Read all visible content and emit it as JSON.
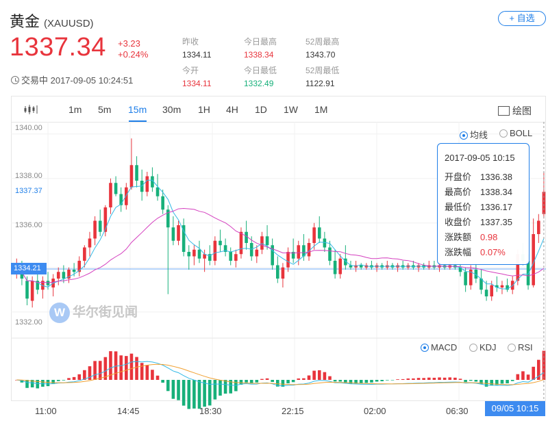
{
  "header": {
    "name": "黄金",
    "code": "(XAUUSD)",
    "add_label": "+ 自选",
    "price": "1337.34",
    "change": "+3.23",
    "change_pct": "+0.24%",
    "status": "交易中 2017-09-05 10:24:51"
  },
  "stats": [
    {
      "label": "昨收",
      "value": "1334.11",
      "color": "normal"
    },
    {
      "label": "今日最高",
      "value": "1338.34",
      "color": "red"
    },
    {
      "label": "52周最高",
      "value": "1343.70",
      "color": "normal"
    },
    {
      "label": "今开",
      "value": "1334.11",
      "color": "red"
    },
    {
      "label": "今日最低",
      "value": "1332.49",
      "color": "green"
    },
    {
      "label": "52周最低",
      "value": "1122.91",
      "color": "normal"
    }
  ],
  "toolbar": {
    "timeframes": [
      "1m",
      "5m",
      "15m",
      "30m",
      "1H",
      "4H",
      "1D",
      "1W",
      "1M"
    ],
    "active": "15m",
    "draw_label": "绘图"
  },
  "indicators_main": [
    "均线",
    "BOLL"
  ],
  "indicators_sub": [
    "MACD",
    "KDJ",
    "RSI"
  ],
  "y_axis": {
    "labels": [
      "1340.00",
      "1338.00",
      "1337.37",
      "1336.00",
      "1334.21",
      "1332.00"
    ]
  },
  "x_axis": {
    "labels": [
      "11:00",
      "14:45",
      "18:30",
      "22:15",
      "02:00",
      "06:30"
    ],
    "current": "09/05 10:15"
  },
  "tooltip": {
    "date": "2017-09-05 10:15",
    "rows": [
      {
        "k": "开盘价",
        "v": "1336.38",
        "color": "normal"
      },
      {
        "k": "最高价",
        "v": "1338.34",
        "color": "normal"
      },
      {
        "k": "最低价",
        "v": "1336.17",
        "color": "normal"
      },
      {
        "k": "收盘价",
        "v": "1337.35",
        "color": "normal"
      },
      {
        "k": "涨跌额",
        "v": "0.98",
        "color": "red"
      },
      {
        "k": "涨跌幅",
        "v": "0.07%",
        "color": "red"
      }
    ]
  },
  "watermark": "华尔街见闻",
  "colors": {
    "up": "#e8343c",
    "down": "#17b07a",
    "accent": "#1e7ee8"
  },
  "chart_data": {
    "type": "candlestick",
    "ylim": [
      1331.5,
      1340.3
    ],
    "candles": [
      [
        1333.9,
        1334.4,
        1333.5,
        1334.1
      ],
      [
        1334.1,
        1334.3,
        1333.2,
        1333.5
      ],
      [
        1333.4,
        1333.6,
        1332.3,
        1332.6
      ],
      [
        1332.5,
        1333.6,
        1332.2,
        1333.4
      ],
      [
        1333.4,
        1334.0,
        1332.8,
        1333.0
      ],
      [
        1333.0,
        1333.6,
        1332.6,
        1333.4
      ],
      [
        1333.4,
        1333.8,
        1333.0,
        1333.2
      ],
      [
        1333.1,
        1333.7,
        1332.7,
        1333.5
      ],
      [
        1333.5,
        1334.0,
        1333.2,
        1333.8
      ],
      [
        1333.8,
        1334.1,
        1333.3,
        1333.5
      ],
      [
        1333.5,
        1334.0,
        1333.3,
        1333.9
      ],
      [
        1333.9,
        1334.2,
        1333.6,
        1333.8
      ],
      [
        1333.8,
        1334.5,
        1333.6,
        1334.3
      ],
      [
        1334.3,
        1335.0,
        1334.0,
        1334.9
      ],
      [
        1334.9,
        1335.6,
        1334.5,
        1335.3
      ],
      [
        1335.3,
        1336.3,
        1335.0,
        1336.1
      ],
      [
        1336.1,
        1336.6,
        1335.4,
        1335.6
      ],
      [
        1335.6,
        1336.8,
        1335.4,
        1336.7
      ],
      [
        1336.7,
        1338.0,
        1336.4,
        1337.8
      ],
      [
        1337.8,
        1338.1,
        1337.2,
        1337.3
      ],
      [
        1337.3,
        1337.6,
        1336.5,
        1336.8
      ],
      [
        1336.8,
        1337.8,
        1336.6,
        1337.6
      ],
      [
        1337.6,
        1339.8,
        1337.5,
        1338.6
      ],
      [
        1338.6,
        1339.0,
        1337.6,
        1337.9
      ],
      [
        1337.9,
        1338.4,
        1337.0,
        1337.4
      ],
      [
        1337.4,
        1338.3,
        1337.2,
        1338.1
      ],
      [
        1338.1,
        1338.5,
        1337.4,
        1337.6
      ],
      [
        1337.6,
        1338.2,
        1337.0,
        1337.2
      ],
      [
        1337.2,
        1337.5,
        1336.4,
        1336.6
      ],
      [
        1336.6,
        1336.8,
        1332.8,
        1335.8
      ],
      [
        1335.8,
        1336.3,
        1335.0,
        1335.2
      ],
      [
        1335.2,
        1336.1,
        1335.0,
        1335.9
      ],
      [
        1335.9,
        1336.2,
        1334.5,
        1334.7
      ],
      [
        1334.7,
        1335.0,
        1333.9,
        1334.5
      ],
      [
        1334.5,
        1335.0,
        1334.1,
        1334.8
      ],
      [
        1334.8,
        1335.2,
        1334.2,
        1334.4
      ],
      [
        1334.4,
        1334.8,
        1333.8,
        1334.6
      ],
      [
        1334.6,
        1335.0,
        1334.1,
        1334.3
      ],
      [
        1334.3,
        1335.4,
        1334.1,
        1335.2
      ],
      [
        1335.2,
        1335.7,
        1334.7,
        1335.0
      ],
      [
        1335.0,
        1335.3,
        1334.5,
        1334.7
      ],
      [
        1334.7,
        1334.9,
        1334.1,
        1334.3
      ],
      [
        1334.3,
        1334.8,
        1334.0,
        1334.6
      ],
      [
        1334.6,
        1335.8,
        1334.4,
        1335.6
      ],
      [
        1335.6,
        1336.1,
        1334.8,
        1335.1
      ],
      [
        1335.1,
        1335.4,
        1334.3,
        1334.5
      ],
      [
        1334.5,
        1335.0,
        1334.2,
        1334.8
      ],
      [
        1334.8,
        1335.6,
        1334.6,
        1335.4
      ],
      [
        1335.4,
        1335.9,
        1334.8,
        1335.0
      ],
      [
        1335.0,
        1335.3,
        1333.9,
        1334.1
      ],
      [
        1334.1,
        1334.5,
        1333.3,
        1333.5
      ],
      [
        1333.5,
        1334.2,
        1333.1,
        1334.0
      ],
      [
        1334.0,
        1334.9,
        1333.8,
        1334.7
      ],
      [
        1334.7,
        1335.3,
        1334.2,
        1334.4
      ],
      [
        1334.4,
        1335.2,
        1334.1,
        1335.0
      ],
      [
        1335.0,
        1335.5,
        1334.3,
        1334.5
      ],
      [
        1334.5,
        1335.3,
        1334.3,
        1335.1
      ],
      [
        1335.1,
        1336.0,
        1334.8,
        1335.8
      ],
      [
        1335.8,
        1336.3,
        1335.1,
        1335.3
      ],
      [
        1335.3,
        1335.6,
        1334.7,
        1334.9
      ],
      [
        1334.9,
        1335.2,
        1334.1,
        1334.3
      ],
      [
        1334.3,
        1334.8,
        1333.5,
        1333.7
      ],
      [
        1333.7,
        1334.6,
        1333.5,
        1334.4
      ],
      [
        1334.4,
        1335.0,
        1333.9,
        1334.1
      ],
      [
        1334.1,
        1334.3,
        1333.9,
        1334.0
      ],
      [
        1334.0,
        1334.3,
        1333.8,
        1334.1
      ],
      [
        1334.1,
        1334.2,
        1333.9,
        1334.0
      ],
      [
        1334.0,
        1334.2,
        1333.9,
        1334.1
      ],
      [
        1334.1,
        1334.3,
        1333.9,
        1334.0
      ],
      [
        1334.0,
        1334.2,
        1333.8,
        1334.1
      ],
      [
        1334.1,
        1334.2,
        1333.9,
        1334.0
      ],
      [
        1334.0,
        1334.3,
        1333.9,
        1334.1
      ],
      [
        1334.1,
        1334.2,
        1333.9,
        1334.0
      ],
      [
        1334.0,
        1334.2,
        1333.8,
        1334.1
      ],
      [
        1334.1,
        1334.3,
        1333.9,
        1334.0
      ],
      [
        1334.0,
        1334.2,
        1333.9,
        1334.1
      ],
      [
        1334.1,
        1334.3,
        1333.9,
        1334.0
      ],
      [
        1334.0,
        1334.2,
        1333.8,
        1334.1
      ],
      [
        1334.1,
        1334.2,
        1333.9,
        1334.0
      ],
      [
        1334.0,
        1334.3,
        1333.9,
        1334.1
      ],
      [
        1334.1,
        1334.3,
        1333.9,
        1334.0
      ],
      [
        1334.0,
        1334.2,
        1333.8,
        1334.1
      ],
      [
        1334.1,
        1334.2,
        1333.9,
        1334.0
      ],
      [
        1334.0,
        1334.3,
        1333.9,
        1334.1
      ],
      [
        1334.1,
        1334.3,
        1333.9,
        1334.0
      ],
      [
        1334.0,
        1334.2,
        1333.6,
        1333.8
      ],
      [
        1333.8,
        1334.0,
        1332.9,
        1333.2
      ],
      [
        1333.2,
        1334.1,
        1333.0,
        1333.9
      ],
      [
        1333.9,
        1334.2,
        1333.3,
        1333.5
      ],
      [
        1333.5,
        1333.9,
        1332.8,
        1333.0
      ],
      [
        1333.0,
        1333.4,
        1332.5,
        1332.7
      ],
      [
        1332.7,
        1333.4,
        1332.5,
        1333.2
      ],
      [
        1333.2,
        1333.6,
        1332.9,
        1333.1
      ],
      [
        1333.1,
        1333.4,
        1332.8,
        1333.2
      ],
      [
        1333.2,
        1333.5,
        1332.9,
        1333.0
      ],
      [
        1333.0,
        1333.6,
        1332.8,
        1333.4
      ],
      [
        1333.4,
        1334.8,
        1333.2,
        1334.6
      ],
      [
        1334.6,
        1335.1,
        1334.1,
        1334.3
      ],
      [
        1334.3,
        1334.6,
        1333.0,
        1333.2
      ],
      [
        1333.2,
        1336.2,
        1333.1,
        1335.5
      ],
      [
        1335.5,
        1336.4,
        1335.1,
        1336.1
      ],
      [
        1336.4,
        1338.3,
        1336.2,
        1337.4
      ]
    ]
  }
}
